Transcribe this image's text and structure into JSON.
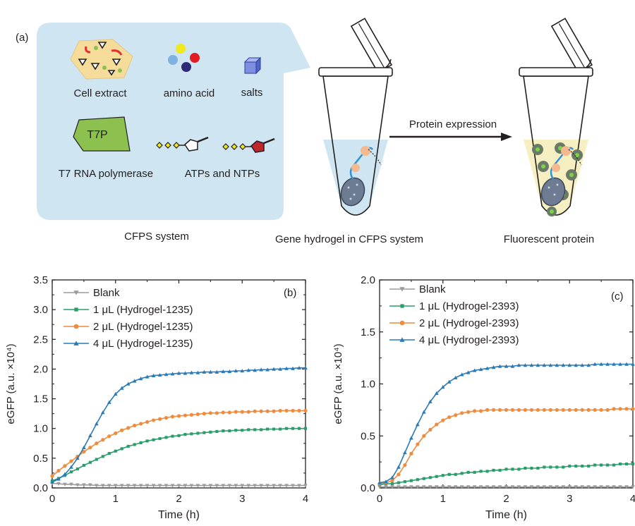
{
  "panel_a": {
    "label": "(a)",
    "components": {
      "cell_extract": "Cell extract",
      "amino_acid": "amino acid",
      "salts": "salts",
      "t7_badge": "T7P",
      "t7_polymerase": "T7 RNA polymerase",
      "atps_ntps": "ATPs and NTPs"
    },
    "cfps_caption": "CFPS  system",
    "gene_caption": "Gene hydrogel in CFPS system",
    "arrow_label": "Protein expression",
    "fluor_caption": "Fluorescent protein",
    "colors": {
      "bubble": "#cfe6f2",
      "solution": "#cfe6f2",
      "fluor_solution": "#f6efc1",
      "t7_green": "#8cc04f",
      "extract": "#f6dc9a"
    }
  },
  "chart_data": [
    {
      "panel": "(b)",
      "type": "line",
      "xlabel": "Time (h)",
      "ylabel": "eGFP (a.u. ×10⁴)",
      "xlim": [
        0,
        4
      ],
      "ylim": [
        0,
        3.5
      ],
      "x_ticks": [
        "0",
        "1",
        "2",
        "3",
        "4"
      ],
      "y_ticks": [
        "0.0",
        "0.5",
        "1.0",
        "1.5",
        "2.0",
        "2.5",
        "3.0",
        "3.5"
      ],
      "legend_position": "top-left",
      "x_step_h": 0.1,
      "series": [
        {
          "name": "Blank",
          "marker": "triangle-down",
          "color": "#9c9c9c",
          "values": [
            0.08,
            0.07,
            0.06,
            0.06,
            0.05,
            0.05,
            0.05,
            0.04,
            0.04,
            0.04,
            0.04,
            0.04,
            0.04,
            0.04,
            0.04,
            0.04,
            0.04,
            0.04,
            0.04,
            0.04,
            0.04,
            0.04,
            0.04,
            0.04,
            0.04,
            0.04,
            0.04,
            0.04,
            0.04,
            0.04,
            0.04,
            0.04,
            0.04,
            0.04,
            0.04,
            0.04,
            0.04,
            0.04,
            0.04,
            0.04,
            0.04
          ]
        },
        {
          "name": "1 μL (Hydrogel-1235)",
          "marker": "square",
          "color": "#2a9d6b",
          "values": [
            0.12,
            0.16,
            0.21,
            0.27,
            0.32,
            0.38,
            0.43,
            0.48,
            0.53,
            0.58,
            0.62,
            0.66,
            0.7,
            0.73,
            0.76,
            0.79,
            0.81,
            0.83,
            0.85,
            0.87,
            0.88,
            0.9,
            0.91,
            0.92,
            0.93,
            0.94,
            0.95,
            0.96,
            0.96,
            0.97,
            0.97,
            0.98,
            0.98,
            0.98,
            0.99,
            0.99,
            0.99,
            1.0,
            1.0,
            1.0,
            1.0
          ]
        },
        {
          "name": "2 μL (Hydrogel-1235)",
          "marker": "circle",
          "color": "#f08a3c",
          "values": [
            0.2,
            0.29,
            0.37,
            0.45,
            0.53,
            0.61,
            0.68,
            0.75,
            0.81,
            0.87,
            0.92,
            0.97,
            1.01,
            1.05,
            1.08,
            1.11,
            1.14,
            1.16,
            1.18,
            1.2,
            1.21,
            1.22,
            1.23,
            1.24,
            1.25,
            1.26,
            1.26,
            1.27,
            1.27,
            1.28,
            1.28,
            1.28,
            1.29,
            1.29,
            1.29,
            1.29,
            1.3,
            1.3,
            1.3,
            1.3,
            1.3
          ]
        },
        {
          "name": "4 μL (Hydrogel-1235)",
          "marker": "triangle-up",
          "color": "#2a7ab8",
          "values": [
            0.1,
            0.15,
            0.23,
            0.35,
            0.5,
            0.68,
            0.88,
            1.08,
            1.27,
            1.44,
            1.58,
            1.68,
            1.75,
            1.8,
            1.84,
            1.87,
            1.89,
            1.9,
            1.91,
            1.92,
            1.93,
            1.93,
            1.94,
            1.94,
            1.95,
            1.95,
            1.95,
            1.96,
            1.96,
            1.97,
            1.97,
            1.98,
            1.98,
            1.99,
            1.99,
            2.0,
            2.0,
            2.01,
            2.01,
            2.02,
            2.02
          ]
        }
      ]
    },
    {
      "panel": "(c)",
      "type": "line",
      "xlabel": "Time (h)",
      "ylabel": "eGFP (a.u. ×10⁴)",
      "xlim": [
        0,
        4
      ],
      "ylim": [
        0,
        2.0
      ],
      "x_ticks": [
        "0",
        "1",
        "2",
        "3",
        "4"
      ],
      "y_ticks": [
        "0.0",
        "0.5",
        "1.0",
        "1.5",
        "2.0"
      ],
      "legend_position": "top-left",
      "x_step_h": 0.1,
      "series": [
        {
          "name": "Blank",
          "marker": "triangle-down",
          "color": "#9c9c9c",
          "values": [
            0.01,
            0.01,
            0.01,
            0.01,
            0.01,
            0.01,
            0.01,
            0.01,
            0.01,
            0.01,
            0.01,
            0.01,
            0.01,
            0.01,
            0.01,
            0.01,
            0.01,
            0.01,
            0.01,
            0.01,
            0.01,
            0.01,
            0.01,
            0.01,
            0.01,
            0.01,
            0.01,
            0.01,
            0.01,
            0.01,
            0.01,
            0.01,
            0.01,
            0.01,
            0.01,
            0.01,
            0.01,
            0.01,
            0.01,
            0.01,
            0.01
          ]
        },
        {
          "name": "1 μL (Hydrogel-2393)",
          "marker": "square",
          "color": "#2a9d6b",
          "values": [
            0.03,
            0.04,
            0.04,
            0.05,
            0.06,
            0.07,
            0.08,
            0.09,
            0.1,
            0.11,
            0.12,
            0.13,
            0.13,
            0.14,
            0.15,
            0.15,
            0.16,
            0.16,
            0.17,
            0.17,
            0.18,
            0.18,
            0.18,
            0.19,
            0.19,
            0.19,
            0.2,
            0.2,
            0.2,
            0.2,
            0.21,
            0.21,
            0.21,
            0.21,
            0.22,
            0.22,
            0.22,
            0.22,
            0.23,
            0.23,
            0.23
          ]
        },
        {
          "name": "2 μL (Hydrogel-2393)",
          "marker": "circle",
          "color": "#f08a3c",
          "values": [
            0.04,
            0.05,
            0.07,
            0.13,
            0.22,
            0.33,
            0.42,
            0.5,
            0.56,
            0.61,
            0.65,
            0.68,
            0.7,
            0.72,
            0.73,
            0.74,
            0.74,
            0.75,
            0.75,
            0.75,
            0.75,
            0.75,
            0.75,
            0.75,
            0.75,
            0.75,
            0.75,
            0.75,
            0.75,
            0.75,
            0.75,
            0.75,
            0.75,
            0.75,
            0.75,
            0.75,
            0.75,
            0.76,
            0.76,
            0.76,
            0.76
          ]
        },
        {
          "name": "4 μL (Hydrogel-2393)",
          "marker": "triangle-up",
          "color": "#2a7ab8",
          "values": [
            0.05,
            0.06,
            0.1,
            0.2,
            0.34,
            0.48,
            0.61,
            0.73,
            0.83,
            0.91,
            0.97,
            1.02,
            1.06,
            1.09,
            1.11,
            1.13,
            1.14,
            1.15,
            1.16,
            1.17,
            1.17,
            1.17,
            1.18,
            1.18,
            1.18,
            1.18,
            1.18,
            1.18,
            1.18,
            1.18,
            1.18,
            1.18,
            1.18,
            1.18,
            1.19,
            1.19,
            1.19,
            1.19,
            1.19,
            1.19,
            1.19
          ]
        }
      ]
    }
  ]
}
